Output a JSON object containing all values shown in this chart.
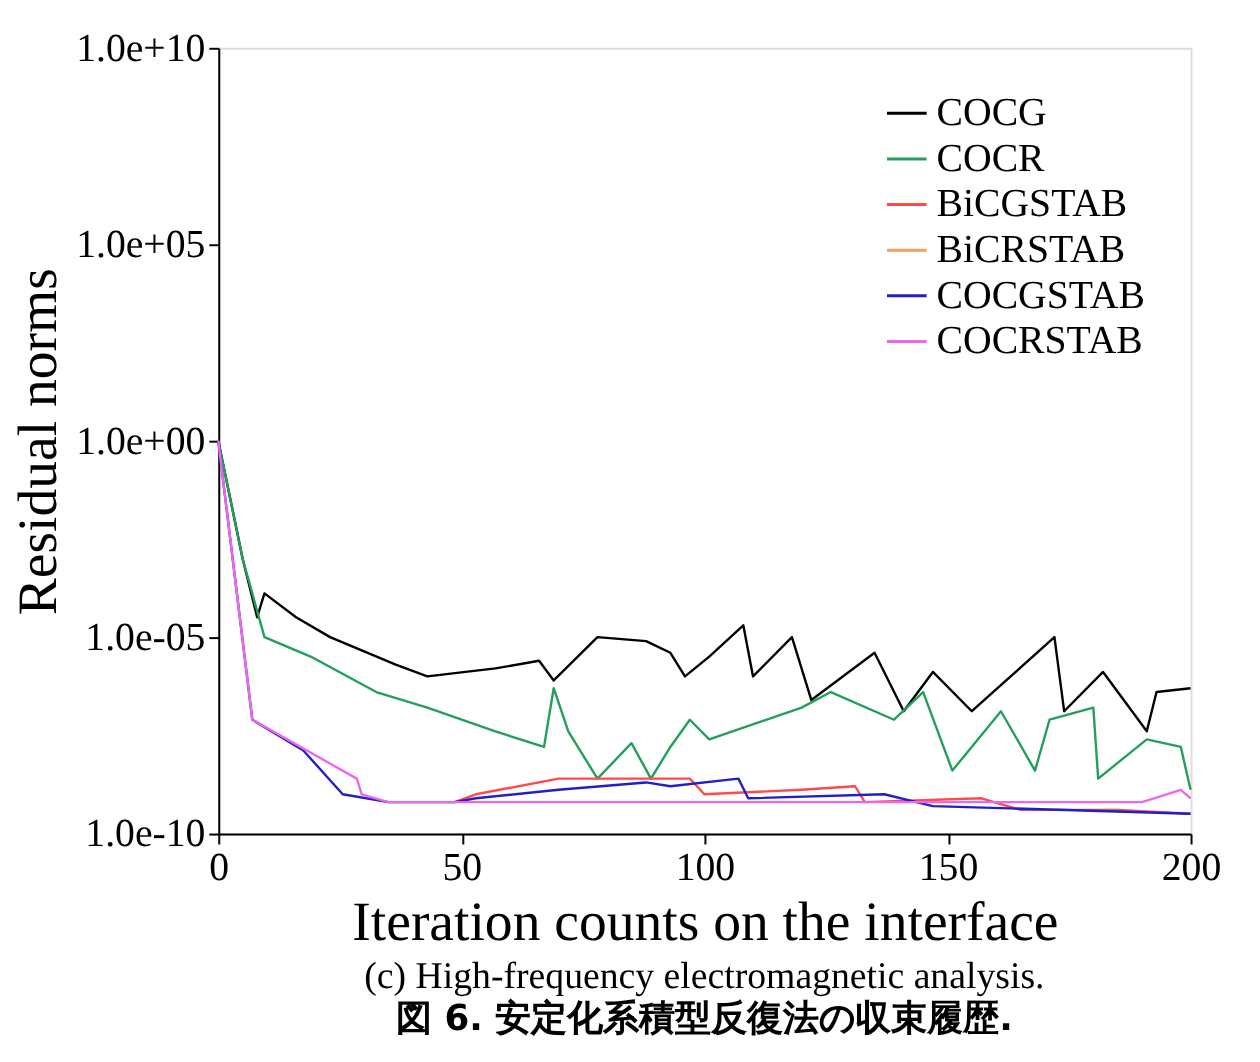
{
  "chart_data": {
    "type": "line",
    "xlabel": "Iteration counts on the interface",
    "ylabel": "Residual norms",
    "log": "y",
    "grid": false,
    "legend": "top right",
    "marker": "none",
    "line_style": "solid",
    "xlim": [
      0,
      200
    ],
    "xticks": [
      0,
      50,
      100,
      150,
      200
    ],
    "ylim": [
      1e-10,
      10000000000.0
    ],
    "yticks": [
      {
        "value": 1e-10,
        "label": "1.0e-10"
      },
      {
        "value": 1e-05,
        "label": "1.0e-05"
      },
      {
        "value": 1,
        "label": "1.0e+00"
      },
      {
        "value": 100000,
        "label": "1.0e+05"
      },
      {
        "value": 10000000000.0,
        "label": "1.0e+10"
      }
    ],
    "series": [
      {
        "name": "COCG",
        "color": "#000000",
        "x": [
          0,
          3,
          5,
          8,
          9.5,
          16,
          23,
          36.5,
          43,
          57,
          66,
          69,
          78,
          88,
          93,
          96,
          101,
          108,
          110,
          118,
          122,
          135,
          141,
          147,
          155,
          163,
          172,
          174,
          182,
          191,
          193,
          200
        ],
        "values": [
          1,
          0.016,
          0.001,
          3.2e-05,
          0.00013,
          3.2e-05,
          1e-05,
          2e-06,
          1e-06,
          1.6e-06,
          2.5e-06,
          7.9e-07,
          1e-05,
          7.9e-06,
          4e-06,
          1e-06,
          3.2e-06,
          2e-05,
          1e-06,
          1e-05,
          2.5e-07,
          4e-06,
          1.3e-07,
          1.3e-06,
          1.3e-07,
          1e-06,
          1e-05,
          1.3e-07,
          1.3e-06,
          4e-08,
          4e-07,
          5e-07
        ]
      },
      {
        "name": "COCR",
        "color": "#22a05a",
        "x": [
          0,
          5,
          9.5,
          19,
          32.5,
          43,
          57,
          67,
          69,
          72,
          78,
          85,
          89,
          93,
          97,
          101,
          120,
          126,
          139,
          145,
          151,
          161,
          168,
          171,
          180,
          181,
          191,
          198,
          200
        ],
        "values": [
          1,
          0.001,
          1e-05,
          3.2e-06,
          4e-07,
          1.6e-07,
          4e-08,
          1.6e-08,
          5e-07,
          4e-08,
          2.5e-09,
          2e-08,
          2.5e-09,
          1.6e-08,
          7.9e-08,
          2.5e-08,
          1.6e-07,
          4e-07,
          7.9e-08,
          4e-07,
          4e-09,
          1.3e-07,
          4e-09,
          7.9e-08,
          1.6e-07,
          2.5e-09,
          2.5e-08,
          1.6e-08,
          1.3e-09
        ]
      },
      {
        "name": "BiCGSTAB",
        "color": "#ff4a4a",
        "x": [
          48.6,
          53,
          70,
          97,
          100,
          120,
          131,
          133,
          157,
          165,
          185,
          200
        ],
        "values": [
          6.3e-10,
          1e-09,
          2.5e-09,
          2.5e-09,
          1e-09,
          1.3e-09,
          1.6e-09,
          6.3e-10,
          7.9e-10,
          4e-10,
          4e-10,
          3.2e-10
        ]
      },
      {
        "name": "BiCRSTAB",
        "color": "#f4a060"
      },
      {
        "name": "COCGSTAB",
        "color": "#2020c8",
        "x": [
          0,
          7,
          17.5,
          25.6,
          35,
          48.6,
          53,
          70,
          88,
          93,
          107,
          109,
          137,
          147,
          200
        ],
        "values": [
          1,
          7.9e-08,
          1.3e-08,
          1e-09,
          6.3e-10,
          6.3e-10,
          7.9e-10,
          1.3e-09,
          2e-09,
          1.6e-09,
          2.5e-09,
          7.9e-10,
          1e-09,
          5e-10,
          3.2e-10
        ]
      },
      {
        "name": "COCRSTAB",
        "color": "#ee66ee",
        "x": [
          0,
          7,
          28.5,
          29.5,
          35,
          190,
          198,
          200
        ],
        "values": [
          1,
          7.9e-08,
          2.5e-09,
          1e-09,
          6.3e-10,
          6.3e-10,
          1.3e-09,
          7.9e-10
        ]
      }
    ],
    "annotations": [
      "(c) High-frequency electromagnetic analysis.",
      "図 6. 安定化系積型反復法の収束履歴."
    ]
  }
}
